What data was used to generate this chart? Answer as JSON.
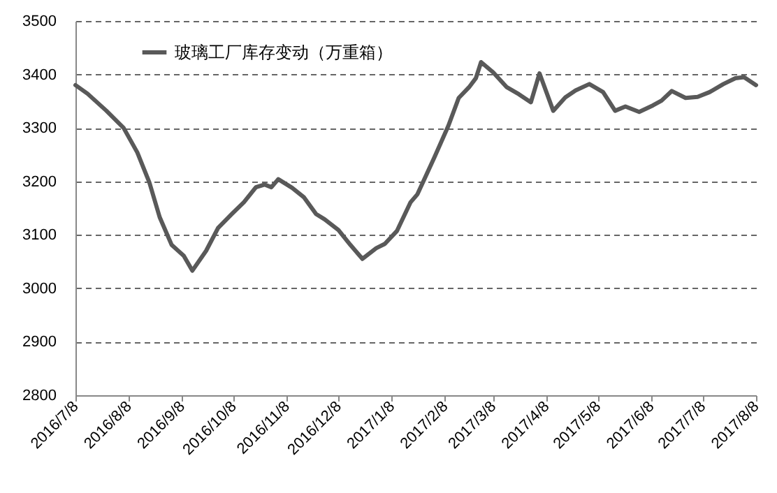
{
  "chart_data": {
    "type": "line",
    "legend": "top left",
    "grid": "y",
    "line_style": "solid",
    "marker": "none",
    "x": [
      "2016-07-08",
      "2016-07-15",
      "2016-07-26",
      "2016-08-05",
      "2016-08-13",
      "2016-08-20",
      "2016-08-26",
      "2016-09-02",
      "2016-09-09",
      "2016-09-14",
      "2016-09-22",
      "2016-09-29",
      "2016-10-07",
      "2016-10-14",
      "2016-10-21",
      "2016-10-26",
      "2016-10-30",
      "2016-11-03",
      "2016-11-11",
      "2016-11-18",
      "2016-11-25",
      "2016-11-30",
      "2016-12-08",
      "2016-12-15",
      "2016-12-22",
      "2016-12-30",
      "2017-01-04",
      "2017-01-11",
      "2017-01-19",
      "2017-01-23",
      "2017-02-02",
      "2017-02-10",
      "2017-02-16",
      "2017-02-22",
      "2017-02-26",
      "2017-03-01",
      "2017-03-08",
      "2017-03-16",
      "2017-03-23",
      "2017-03-30",
      "2017-04-04",
      "2017-04-12",
      "2017-04-19",
      "2017-04-25",
      "2017-05-03",
      "2017-05-11",
      "2017-05-18",
      "2017-05-24",
      "2017-06-01",
      "2017-06-09",
      "2017-06-14",
      "2017-06-20",
      "2017-06-28",
      "2017-07-05",
      "2017-07-12",
      "2017-07-20",
      "2017-07-27",
      "2017-08-01",
      "2017-08-08"
    ],
    "series": [
      {
        "name": "玻璃工厂库存变动（万重箱）",
        "color": "#595959",
        "values": [
          3380,
          3364,
          3332,
          3300,
          3254,
          3198,
          3133,
          3081,
          3061,
          3033,
          3070,
          3113,
          3139,
          3161,
          3189,
          3194,
          3189,
          3204,
          3188,
          3170,
          3139,
          3129,
          3109,
          3081,
          3055,
          3075,
          3083,
          3107,
          3161,
          3176,
          3246,
          3304,
          3356,
          3376,
          3393,
          3423,
          3404,
          3376,
          3363,
          3348,
          3402,
          3332,
          3357,
          3370,
          3382,
          3367,
          3332,
          3340,
          3330,
          3342,
          3351,
          3369,
          3356,
          3358,
          3367,
          3382,
          3393,
          3395,
          3380
        ]
      }
    ],
    "xlim": [
      "2016-07-08",
      "2017-08-08"
    ],
    "xticks": [
      {
        "value": "2016-07-08",
        "label": "2016/7/8"
      },
      {
        "value": "2016-08-08",
        "label": "2016/8/8"
      },
      {
        "value": "2016-09-08",
        "label": "2016/9/8"
      },
      {
        "value": "2016-10-08",
        "label": "2016/10/8"
      },
      {
        "value": "2016-11-08",
        "label": "2016/11/8"
      },
      {
        "value": "2016-12-08",
        "label": "2016/12/8"
      },
      {
        "value": "2017-01-08",
        "label": "2017/1/8"
      },
      {
        "value": "2017-02-08",
        "label": "2017/2/8"
      },
      {
        "value": "2017-03-08",
        "label": "2017/3/8"
      },
      {
        "value": "2017-04-08",
        "label": "2017/4/8"
      },
      {
        "value": "2017-05-08",
        "label": "2017/5/8"
      },
      {
        "value": "2017-06-08",
        "label": "2017/6/8"
      },
      {
        "value": "2017-07-08",
        "label": "2017/7/8"
      },
      {
        "value": "2017-08-08",
        "label": "2017/8/8"
      }
    ],
    "ylim": [
      2800,
      3500
    ],
    "yticks": [
      2800,
      2900,
      3000,
      3100,
      3200,
      3300,
      3400,
      3500
    ]
  }
}
